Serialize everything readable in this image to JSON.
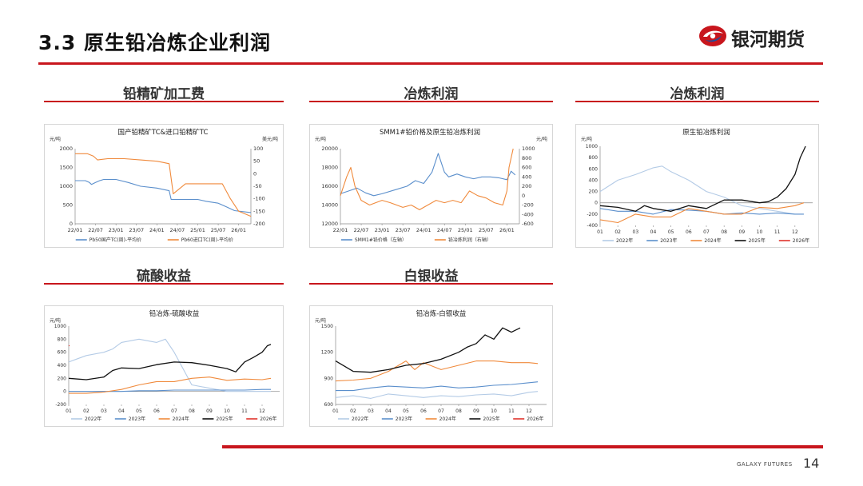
{
  "header": {
    "title": "3.3  原生铅冶炼企业利润"
  },
  "logo": {
    "text": "银河期货"
  },
  "sections": {
    "s1": "铅精矿加工费",
    "s2": "冶炼利润",
    "s3": "冶炼利润",
    "s4": "硫酸收益",
    "s5": "白银收益"
  },
  "footer": {
    "brand": "GALAXY FUTURES",
    "page": "14"
  },
  "colors": {
    "accent": "#c8161d",
    "c2022": "#b4cbe6",
    "c2023": "#5b8fcc",
    "c2024": "#f08a3c",
    "c2025": "#111111",
    "c2026": "#e0332c",
    "blue": "#5b8fcc",
    "orange": "#f08a3c"
  },
  "chart_data": [
    {
      "type": "line",
      "title": "国产铅精矿TC&进口铅精矿TC",
      "ylabel": "元/吨",
      "y2label": "美元/吨",
      "ylim": [
        0,
        2000
      ],
      "y2lim": [
        -200,
        100
      ],
      "yticks": [
        "0",
        "500",
        "1000",
        "1500",
        "2000"
      ],
      "y2ticks": [
        "-200",
        "-150",
        "-100",
        "-50",
        "0",
        "50",
        "100"
      ],
      "xticks": [
        "22/01",
        "22/07",
        "23/01",
        "23/07",
        "24/01",
        "24/07",
        "25/01",
        "25/07",
        "26/01"
      ],
      "legend_position": "bottom",
      "series": [
        {
          "name": "Pb50国产TC(周)-平均价",
          "axis": "left",
          "color": "blue",
          "x": [
            0,
            0.1,
            0.25,
            0.35,
            0.4,
            0.5,
            0.6,
            0.7,
            1.0,
            1.3,
            1.6,
            2.0,
            2.3,
            2.35,
            2.7,
            3.0,
            3.2,
            3.5,
            3.7,
            3.9,
            4.3
          ],
          "values": [
            1150,
            1150,
            1150,
            1100,
            1050,
            1100,
            1150,
            1180,
            1180,
            1100,
            1000,
            950,
            880,
            650,
            650,
            650,
            600,
            550,
            450,
            350,
            300
          ]
        },
        {
          "name": "Pb60进口TC(周)-平均价",
          "axis": "right",
          "color": "orange",
          "x": [
            0,
            0.3,
            0.45,
            0.55,
            0.8,
            1.2,
            1.6,
            2.0,
            2.15,
            2.3,
            2.4,
            2.7,
            3.0,
            3.3,
            3.6,
            3.8,
            4.0,
            4.3
          ],
          "values": [
            80,
            80,
            70,
            55,
            60,
            60,
            55,
            50,
            45,
            40,
            -80,
            -40,
            -40,
            -40,
            -40,
            -100,
            -150,
            -170
          ]
        }
      ]
    },
    {
      "type": "line",
      "title": "SMM1#铅价格及原生铅冶炼利润",
      "ylabel": "元/吨",
      "y2label": "元/吨",
      "ylim": [
        12000,
        20000
      ],
      "y2lim": [
        -600,
        1000
      ],
      "yticks": [
        "12000",
        "14000",
        "16000",
        "18000",
        "20000"
      ],
      "y2ticks": [
        "-600",
        "-400",
        "-200",
        "0",
        "200",
        "400",
        "600",
        "800",
        "1000"
      ],
      "xticks": [
        "22/01",
        "22/07",
        "23/01",
        "23/07",
        "24/01",
        "24/07",
        "25/01",
        "25/07",
        "26/01"
      ],
      "legend_position": "bottom",
      "series": [
        {
          "name": "SMM1#铅价格（左轴）",
          "axis": "left",
          "color": "blue",
          "x": [
            0,
            0.2,
            0.4,
            0.6,
            0.8,
            1.0,
            1.3,
            1.6,
            1.8,
            2.0,
            2.2,
            2.35,
            2.5,
            2.6,
            2.8,
            3.0,
            3.2,
            3.4,
            3.6,
            3.8,
            4.0,
            4.1,
            4.2
          ],
          "values": [
            15200,
            15500,
            15800,
            15300,
            15000,
            15200,
            15600,
            16000,
            16600,
            16300,
            17500,
            19500,
            17500,
            17000,
            17300,
            17000,
            16800,
            17000,
            17000,
            16900,
            16700,
            17600,
            17200
          ]
        },
        {
          "name": "铅冶炼利润（右轴）",
          "axis": "right",
          "color": "orange",
          "x": [
            0,
            0.15,
            0.25,
            0.35,
            0.5,
            0.7,
            1.0,
            1.2,
            1.5,
            1.7,
            1.9,
            2.1,
            2.3,
            2.5,
            2.7,
            2.9,
            3.1,
            3.3,
            3.5,
            3.7,
            3.9,
            4.0,
            4.05,
            4.1,
            4.15
          ],
          "values": [
            0,
            400,
            600,
            200,
            -100,
            -200,
            -100,
            -150,
            -250,
            -200,
            -300,
            -200,
            -100,
            -150,
            -100,
            -150,
            100,
            0,
            -50,
            -150,
            -200,
            100,
            600,
            800,
            1000
          ]
        }
      ]
    },
    {
      "type": "line",
      "title": "原生铅冶炼利润",
      "ylabel": "元/吨",
      "ylim": [
        -400,
        1000
      ],
      "yticks": [
        "-400",
        "-200",
        "0",
        "200",
        "400",
        "600",
        "800",
        "1000"
      ],
      "xticks": [
        "01",
        "02",
        "03",
        "04",
        "05",
        "06",
        "07",
        "08",
        "09",
        "10",
        "11",
        "12"
      ],
      "legend_position": "bottom",
      "series": [
        {
          "name": "2022年",
          "color": "c2022",
          "x": [
            1,
            1.5,
            2,
            3,
            4,
            4.5,
            5,
            6,
            7,
            8,
            9,
            10,
            11,
            12,
            12.5
          ],
          "values": [
            200,
            300,
            400,
            500,
            620,
            650,
            550,
            400,
            200,
            100,
            -50,
            -100,
            -150,
            -200,
            -200
          ]
        },
        {
          "name": "2023年",
          "color": "c2023",
          "x": [
            1,
            2,
            3,
            4,
            5,
            6,
            7,
            8,
            9,
            10,
            11,
            12,
            12.5
          ],
          "values": [
            -100,
            -150,
            -150,
            -200,
            -120,
            -130,
            -150,
            -200,
            -180,
            -200,
            -180,
            -200,
            -200
          ]
        },
        {
          "name": "2024年",
          "color": "c2024",
          "x": [
            1,
            2,
            3,
            4,
            5,
            6,
            7,
            8,
            9,
            10,
            11,
            12,
            12.5
          ],
          "values": [
            -300,
            -350,
            -200,
            -250,
            -250,
            -100,
            -150,
            -200,
            -200,
            -80,
            -100,
            -50,
            0
          ]
        },
        {
          "name": "2025年",
          "color": "c2025",
          "x": [
            1,
            2,
            3,
            3.5,
            4,
            5,
            6,
            7,
            8,
            9,
            10,
            10.5,
            11,
            11.5,
            12,
            12.3,
            12.6
          ],
          "values": [
            -50,
            -80,
            -150,
            -50,
            -100,
            -150,
            -50,
            -100,
            50,
            50,
            0,
            20,
            100,
            250,
            500,
            800,
            1000
          ]
        },
        {
          "name": "2026年",
          "color": "c2026",
          "x": [],
          "values": []
        }
      ]
    },
    {
      "type": "line",
      "title": "铅冶炼-硫酸收益",
      "ylabel": "元/吨",
      "ylim": [
        -200,
        1000
      ],
      "yticks": [
        "-200",
        "0",
        "200",
        "400",
        "600",
        "800",
        "1000"
      ],
      "xticks": [
        "01",
        "02",
        "03",
        "04",
        "05",
        "06",
        "07",
        "08",
        "09",
        "10",
        "11",
        "12"
      ],
      "legend_position": "bottom",
      "series": [
        {
          "name": "2022年",
          "color": "c2022",
          "x": [
            1,
            1.5,
            2,
            3,
            3.5,
            4,
            5,
            6,
            6.5,
            7,
            8,
            9,
            10,
            11,
            12,
            12.5
          ],
          "values": [
            450,
            500,
            550,
            600,
            650,
            750,
            800,
            750,
            800,
            600,
            100,
            50,
            0,
            0,
            0,
            0
          ]
        },
        {
          "name": "2023年",
          "color": "c2023",
          "x": [
            1,
            2,
            3,
            4,
            5,
            6,
            7,
            8,
            9,
            10,
            11,
            12,
            12.5
          ],
          "values": [
            0,
            0,
            0,
            0,
            10,
            10,
            20,
            20,
            20,
            20,
            20,
            30,
            30
          ]
        },
        {
          "name": "2024年",
          "color": "c2024",
          "x": [
            1,
            2,
            3,
            4,
            5,
            6,
            7,
            8,
            9,
            10,
            11,
            12,
            12.5
          ],
          "values": [
            -30,
            -30,
            -10,
            30,
            100,
            150,
            150,
            200,
            220,
            170,
            190,
            180,
            200
          ]
        },
        {
          "name": "2025年",
          "color": "c2025",
          "x": [
            1,
            2,
            3,
            3.5,
            4,
            5,
            6,
            7,
            8,
            9,
            10,
            10.5,
            11,
            11.5,
            12,
            12.3,
            12.5
          ],
          "values": [
            200,
            180,
            220,
            320,
            360,
            350,
            410,
            450,
            440,
            400,
            350,
            300,
            450,
            520,
            600,
            700,
            720
          ]
        },
        {
          "name": "2026年",
          "color": "c2026",
          "x": [
            1,
            1.05
          ],
          "values": [
            700,
            700
          ]
        }
      ]
    },
    {
      "type": "line",
      "title": "铅冶炼-白银收益",
      "ylabel": "元/吨",
      "ylim": [
        600,
        1500
      ],
      "yticks": [
        "600",
        "900",
        "1200",
        "1500"
      ],
      "xticks": [
        "01",
        "02",
        "03",
        "04",
        "05",
        "06",
        "07",
        "08",
        "09",
        "10",
        "11",
        "12"
      ],
      "legend_position": "bottom",
      "series": [
        {
          "name": "2022年",
          "color": "c2022",
          "x": [
            1,
            2,
            3,
            4,
            5,
            6,
            7,
            8,
            9,
            10,
            11,
            12,
            12.5
          ],
          "values": [
            680,
            700,
            670,
            720,
            700,
            680,
            700,
            690,
            710,
            720,
            700,
            740,
            750
          ]
        },
        {
          "name": "2023年",
          "color": "c2023",
          "x": [
            1,
            2,
            3,
            4,
            5,
            6,
            7,
            8,
            9,
            10,
            11,
            12,
            12.5
          ],
          "values": [
            760,
            760,
            790,
            810,
            800,
            790,
            810,
            790,
            800,
            820,
            830,
            850,
            860
          ]
        },
        {
          "name": "2024年",
          "color": "c2024",
          "x": [
            1,
            2,
            3,
            4,
            5,
            5.5,
            6,
            7,
            8,
            9,
            10,
            11,
            12,
            12.5
          ],
          "values": [
            870,
            880,
            900,
            980,
            1100,
            1000,
            1080,
            1000,
            1050,
            1100,
            1100,
            1080,
            1080,
            1070
          ]
        },
        {
          "name": "2025年",
          "color": "c2025",
          "x": [
            1,
            2,
            3,
            4,
            5,
            6,
            7,
            8,
            8.5,
            9,
            9.5,
            10,
            10.5,
            11,
            11.5
          ],
          "values": [
            1100,
            980,
            970,
            1000,
            1050,
            1070,
            1120,
            1200,
            1260,
            1300,
            1400,
            1350,
            1480,
            1430,
            1480
          ]
        },
        {
          "name": "2026年",
          "color": "c2026",
          "x": [],
          "values": []
        }
      ]
    }
  ]
}
